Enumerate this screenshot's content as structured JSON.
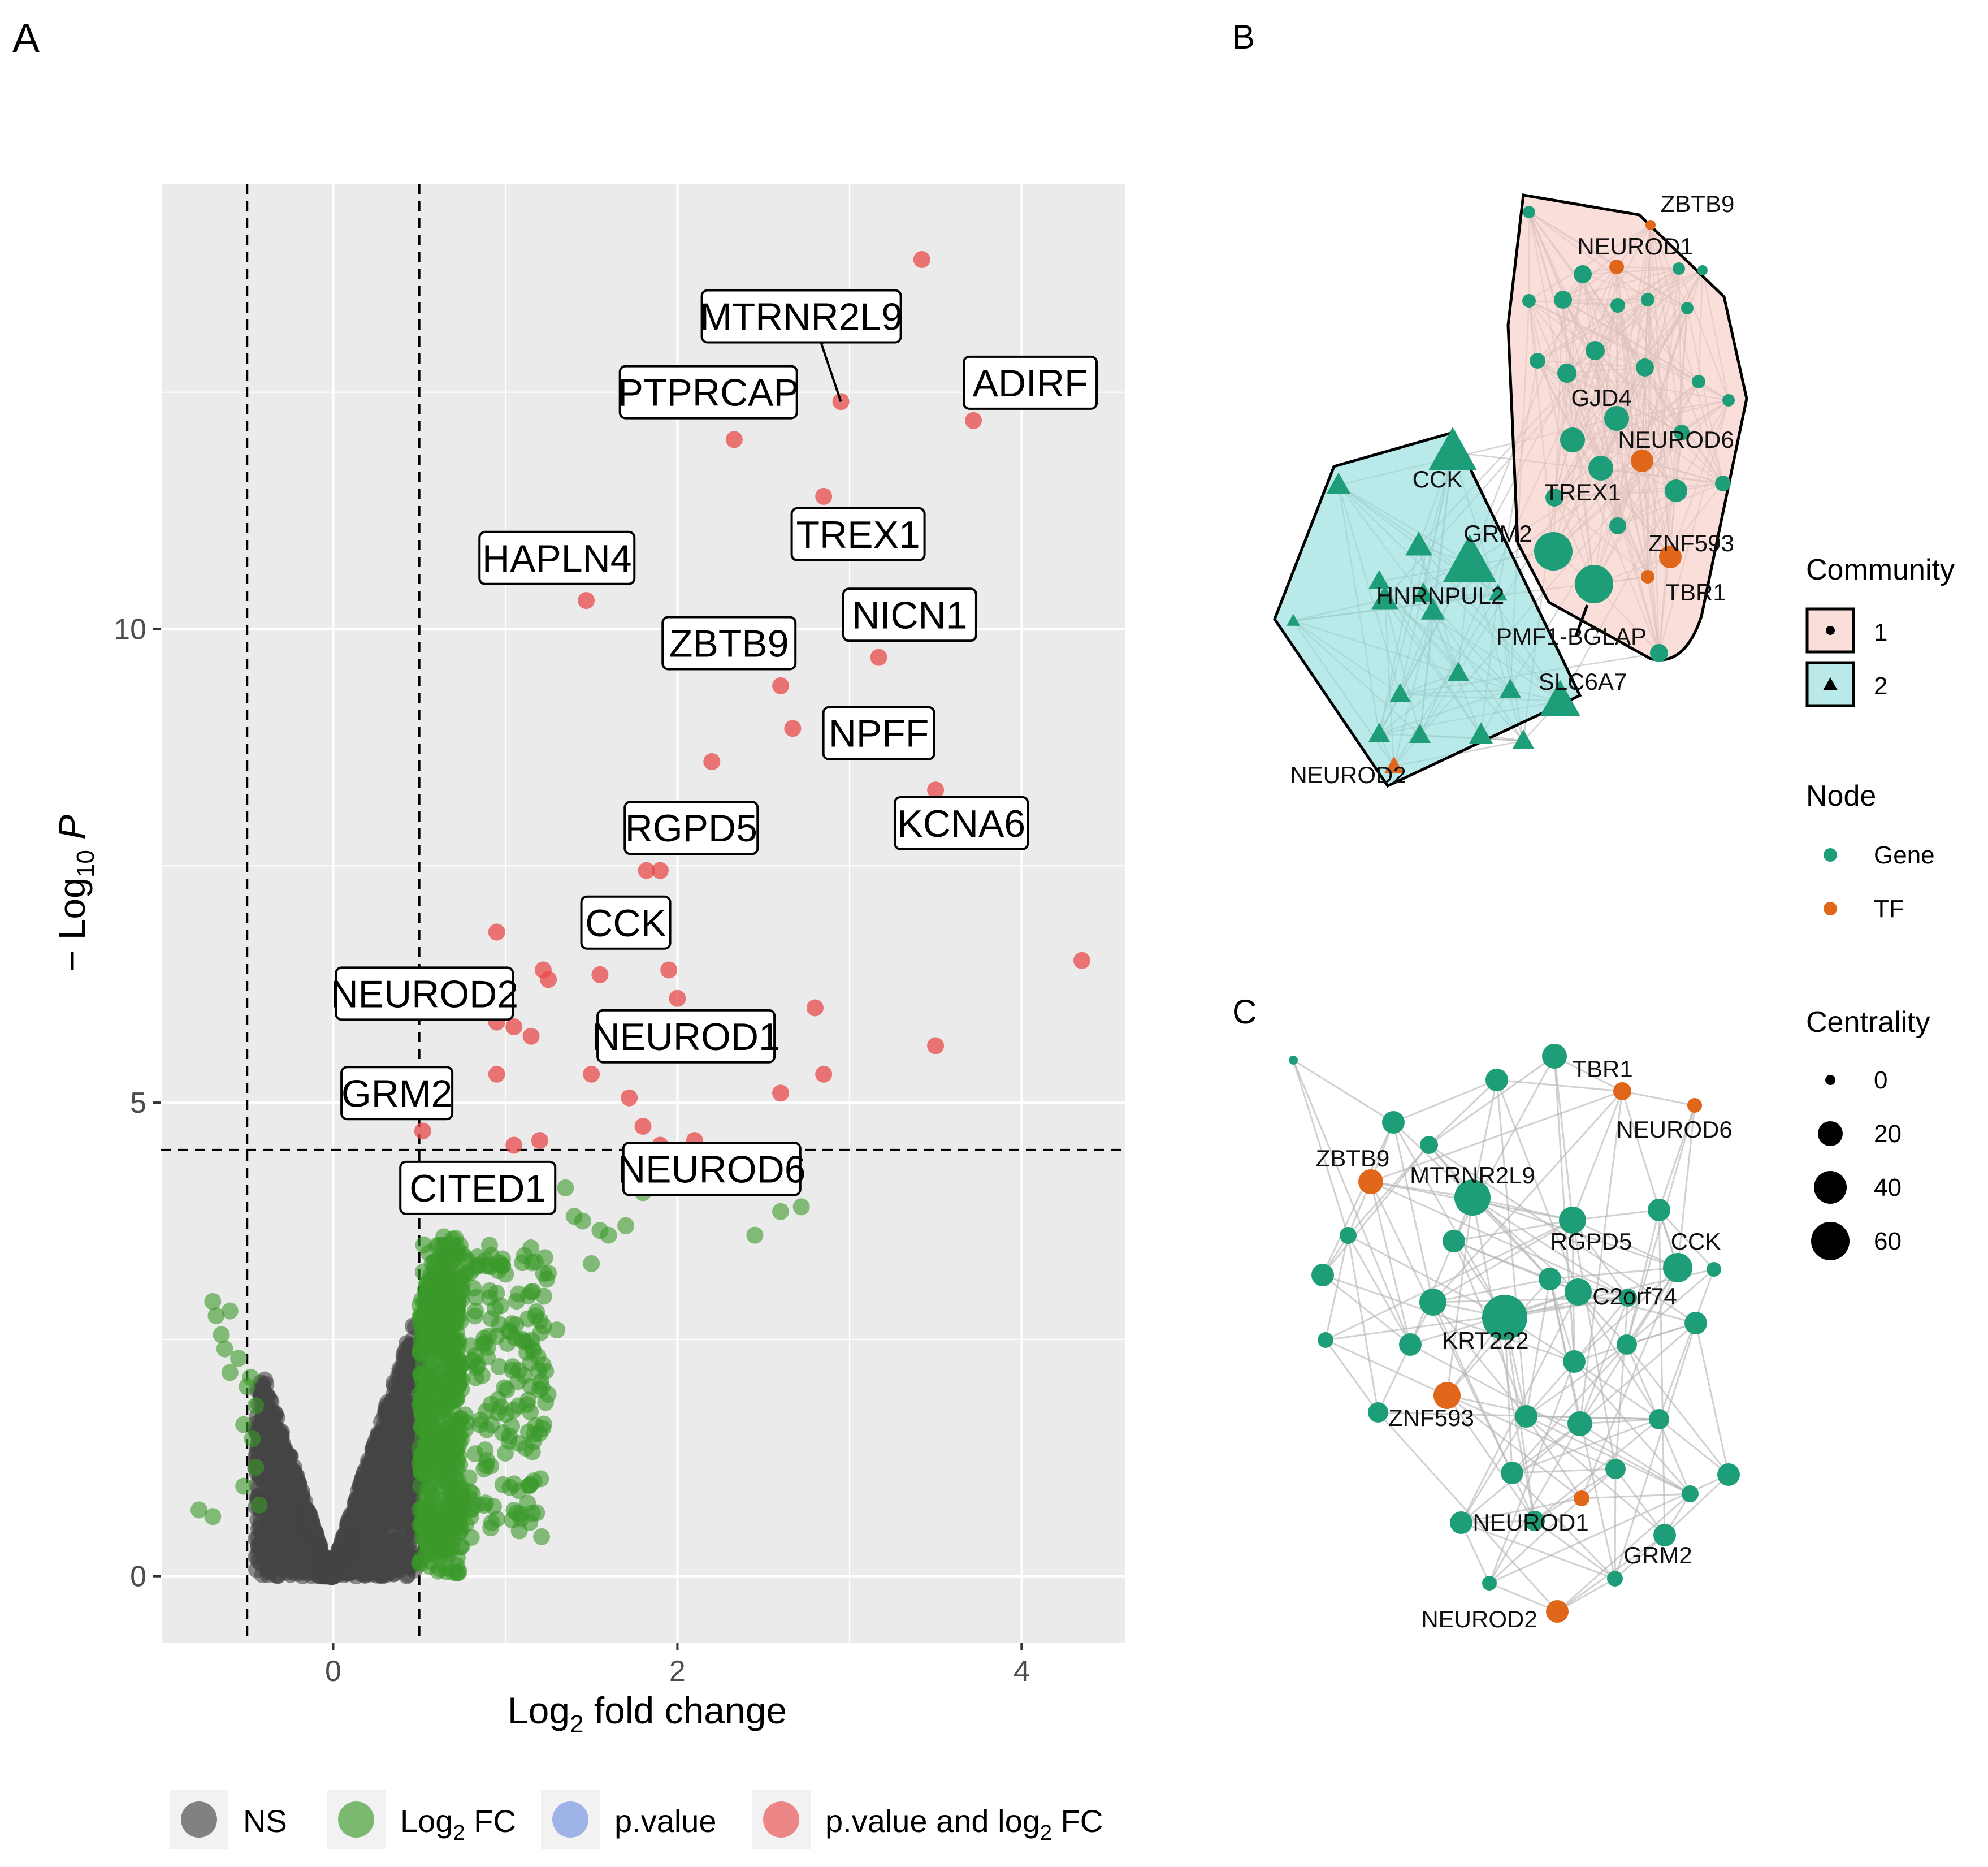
{
  "panel_labels": {
    "a": "A",
    "b": "B",
    "c": "C"
  },
  "chart_data": [
    {
      "type": "scatter",
      "panel": "A",
      "title": "",
      "xlabel": {
        "main": "Log",
        "sub": "2",
        "rest": " fold change"
      },
      "ylabel": {
        "pre": "− Log",
        "sub": "10",
        "post": " P"
      },
      "xlim": [
        -1.0,
        4.6
      ],
      "ylim": [
        -0.7,
        14.7
      ],
      "x_ticks": [
        {
          "v": 0,
          "label": "0"
        },
        {
          "v": 2,
          "label": "2"
        },
        {
          "v": 4,
          "label": "4"
        }
      ],
      "y_ticks": [
        {
          "v": 0,
          "label": "0"
        },
        {
          "v": 5,
          "label": "5"
        },
        {
          "v": 10,
          "label": "10"
        }
      ],
      "thresholds": {
        "x": [
          -0.5,
          0.5
        ],
        "y": 4.5
      },
      "colors": {
        "ns": "#444444",
        "fc": "#3a9a2a",
        "p": "#6f8fe0",
        "both": "#e84a4a",
        "panel_bg": "#ebebeb",
        "grid": "#ffffff"
      },
      "legend": [
        {
          "key": "ns",
          "label": "NS",
          "sub": "",
          "rest": ""
        },
        {
          "key": "fc",
          "label": "Log",
          "sub": "2",
          "rest": " FC"
        },
        {
          "key": "p",
          "label": "p.value",
          "sub": "",
          "rest": ""
        },
        {
          "key": "both",
          "label": "p.value and log",
          "sub": "2",
          "rest": " FC"
        }
      ],
      "points_sig": [
        [
          3.42,
          13.9
        ],
        [
          2.95,
          12.4
        ],
        [
          3.72,
          12.2
        ],
        [
          2.33,
          12.0
        ],
        [
          2.85,
          11.4
        ],
        [
          1.47,
          10.3
        ],
        [
          3.17,
          9.7
        ],
        [
          2.6,
          9.4
        ],
        [
          2.67,
          8.95
        ],
        [
          2.2,
          8.6
        ],
        [
          3.5,
          8.3
        ],
        [
          1.82,
          7.45
        ],
        [
          1.9,
          7.45
        ],
        [
          0.95,
          6.8
        ],
        [
          1.22,
          6.4
        ],
        [
          1.55,
          6.35
        ],
        [
          1.95,
          6.4
        ],
        [
          2.0,
          6.1
        ],
        [
          1.25,
          6.3
        ],
        [
          4.35,
          6.5
        ],
        [
          0.98,
          6.1
        ],
        [
          2.8,
          6.0
        ],
        [
          0.95,
          5.85
        ],
        [
          1.05,
          5.8
        ],
        [
          1.15,
          5.7
        ],
        [
          3.5,
          5.6
        ],
        [
          0.95,
          5.3
        ],
        [
          1.5,
          5.3
        ],
        [
          2.85,
          5.3
        ],
        [
          1.72,
          5.05
        ],
        [
          2.6,
          5.1
        ],
        [
          1.8,
          4.75
        ],
        [
          0.52,
          4.7
        ],
        [
          1.2,
          4.6
        ],
        [
          1.05,
          4.55
        ],
        [
          2.1,
          4.6
        ],
        [
          1.9,
          4.55
        ]
      ],
      "points_fc_extra": [
        [
          -0.7,
          2.9
        ],
        [
          -0.68,
          2.75
        ],
        [
          -0.6,
          2.8
        ],
        [
          -0.65,
          2.55
        ],
        [
          -0.63,
          2.4
        ],
        [
          -0.55,
          2.3
        ],
        [
          -0.6,
          2.15
        ],
        [
          -0.48,
          2.1
        ],
        [
          -0.5,
          2.0
        ],
        [
          -0.45,
          1.8
        ],
        [
          -0.52,
          1.6
        ],
        [
          -0.47,
          1.45
        ],
        [
          -0.45,
          1.15
        ],
        [
          -0.52,
          0.95
        ],
        [
          -0.43,
          0.75
        ],
        [
          -0.78,
          0.7
        ],
        [
          -0.7,
          0.63
        ],
        [
          1.35,
          4.1
        ],
        [
          1.4,
          3.8
        ],
        [
          1.45,
          3.75
        ],
        [
          1.6,
          3.6
        ],
        [
          1.8,
          4.05
        ],
        [
          2.45,
          3.6
        ],
        [
          2.6,
          3.85
        ],
        [
          2.72,
          3.9
        ],
        [
          1.55,
          3.65
        ],
        [
          1.5,
          3.3
        ],
        [
          1.25,
          3.2
        ],
        [
          1.15,
          3.0
        ],
        [
          1.3,
          2.6
        ],
        [
          1.1,
          2.5
        ],
        [
          0.92,
          1.6
        ],
        [
          1.0,
          1.3
        ],
        [
          0.7,
          0.9
        ],
        [
          0.75,
          0.8
        ],
        [
          0.8,
          0.7
        ],
        [
          0.55,
          0.45
        ],
        [
          0.6,
          0.4
        ],
        [
          1.7,
          3.7
        ]
      ],
      "point_labels": [
        {
          "text": "MTRNR2L9",
          "x": 2.72,
          "y": 13.3,
          "px": 2.95,
          "py": 12.4,
          "ax": 2.82,
          "ay": 13.1
        },
        {
          "text": "PTPRCAP",
          "x": 2.18,
          "y": 12.5
        },
        {
          "text": "ADIRF",
          "x": 4.05,
          "y": 12.6
        },
        {
          "text": "TREX1",
          "x": 3.05,
          "y": 11.0
        },
        {
          "text": "HAPLN4",
          "x": 1.3,
          "y": 10.75
        },
        {
          "text": "NICN1",
          "x": 3.35,
          "y": 10.15
        },
        {
          "text": "ZBTB9",
          "x": 2.3,
          "y": 9.85
        },
        {
          "text": "NPFF",
          "x": 3.17,
          "y": 8.9
        },
        {
          "text": "KCNA6",
          "x": 3.65,
          "y": 7.95
        },
        {
          "text": "RGPD5",
          "x": 2.08,
          "y": 7.9
        },
        {
          "text": "CCK",
          "x": 1.7,
          "y": 6.9
        },
        {
          "text": "NEUROD2",
          "x": 0.53,
          "y": 6.15
        },
        {
          "text": "NEUROD1",
          "x": 2.05,
          "y": 5.7
        },
        {
          "text": "GRM2",
          "x": 0.37,
          "y": 5.1
        },
        {
          "text": "NEUROD6",
          "x": 2.2,
          "y": 4.3
        },
        {
          "text": "CITED1",
          "x": 0.84,
          "y": 4.1
        }
      ]
    },
    {
      "type": "network",
      "panel": "B",
      "colors": {
        "gene": "#1e9e78",
        "tf": "#e0661a",
        "comm1_fill": "#f7c9c3",
        "comm2_fill": "#8fdcdc",
        "edge": "#b0b0b0"
      },
      "legend": {
        "community_title": "Community",
        "community_items": [
          {
            "label": "1",
            "shape": "dot"
          },
          {
            "label": "2",
            "shape": "triangle"
          }
        ],
        "node_title": "Node",
        "node_items": [
          {
            "label": "Gene"
          },
          {
            "label": "TF"
          }
        ]
      },
      "node_labels": [
        "ZBTB9",
        "NEUROD1",
        "GJD4",
        "NEUROD6",
        "CCK",
        "TREX1",
        "GRM2",
        "ZNF593",
        "HNRNPUL2",
        "TBR1",
        "PMF1-BGLAP",
        "SLC6A7",
        "NEUROD2"
      ]
    },
    {
      "type": "network",
      "panel": "C",
      "colors": {
        "gene": "#1e9e78",
        "tf": "#e0661a",
        "edge": "#b3b3b3"
      },
      "legend": {
        "centrality_title": "Centrality",
        "centrality_items": [
          "0",
          "20",
          "40",
          "60"
        ]
      },
      "node_labels": [
        "TBR1",
        "NEUROD6",
        "ZBTB9",
        "MTRNR2L9",
        "RGPD5",
        "CCK",
        "C2orf74",
        "KRT222",
        "ZNF593",
        "NEUROD1",
        "GRM2",
        "NEUROD2"
      ]
    }
  ]
}
